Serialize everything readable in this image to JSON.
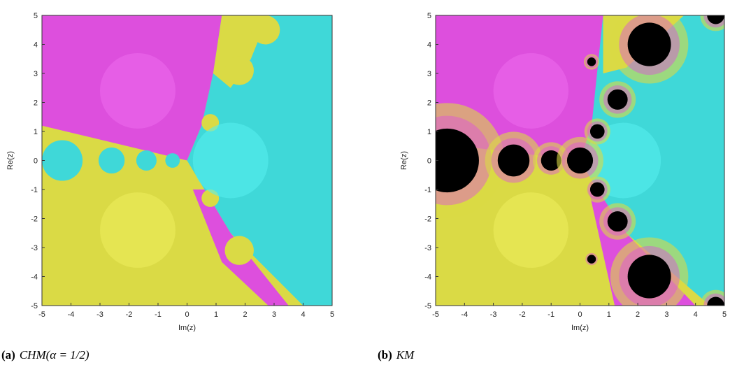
{
  "figures": [
    {
      "xlabel": "Im(z)",
      "ylabel": "Re(z)",
      "xlim": [
        -5,
        5
      ],
      "ylim": [
        -5,
        5
      ],
      "xticks": [
        -5,
        -4,
        -3,
        -2,
        -1,
        0,
        1,
        2,
        3,
        4,
        5
      ],
      "yticks": [
        -5,
        -4,
        -3,
        -2,
        -1,
        0,
        1,
        2,
        3,
        4,
        5
      ],
      "caption": {
        "label": "(a)",
        "text": "CHM(α = 1/2)"
      }
    },
    {
      "xlabel": "Im(z)",
      "ylabel": "Re(z)",
      "xlim": [
        -5,
        5
      ],
      "ylim": [
        -5,
        5
      ],
      "xticks": [
        -5,
        -4,
        -3,
        -2,
        -1,
        0,
        1,
        2,
        3,
        4,
        5
      ],
      "yticks": [
        -5,
        -4,
        -3,
        -2,
        -1,
        0,
        1,
        2,
        3,
        4,
        5
      ],
      "caption": {
        "label": "(b)",
        "text": "KM"
      }
    }
  ]
}
